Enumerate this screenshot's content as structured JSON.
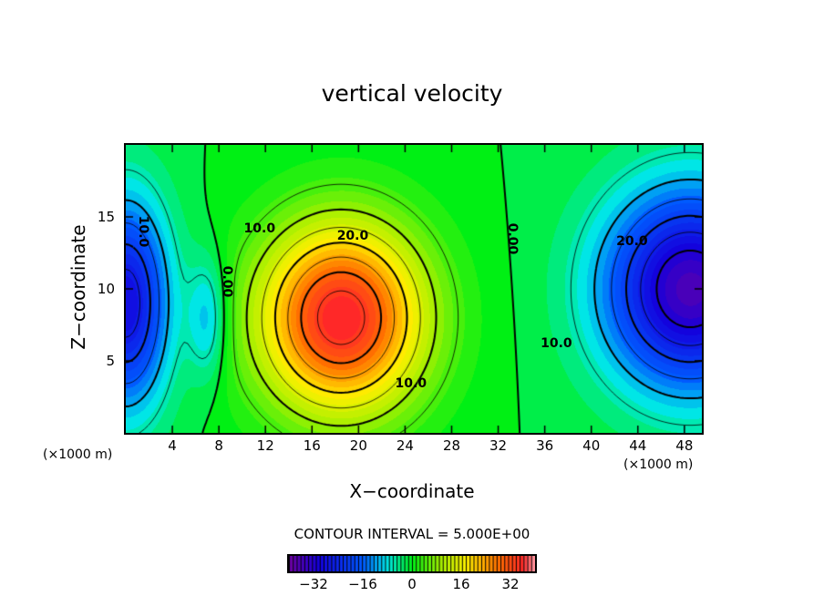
{
  "chart_data": {
    "type": "heatmap",
    "subtype": "filled-contour",
    "title": "vertical velocity",
    "xlabel": "X−coordinate",
    "ylabel": "Z−coordinate",
    "x_unit_left": "(×1000 m)",
    "x_unit_right": "(×1000 m)",
    "xlim": [
      0,
      49.5
    ],
    "ylim": [
      0,
      20
    ],
    "xticks": [
      4,
      8,
      12,
      16,
      20,
      24,
      28,
      32,
      36,
      40,
      44,
      48
    ],
    "xtick_labels": [
      "4",
      "8",
      "12",
      "16",
      "20",
      "24",
      "28",
      "32",
      "36",
      "40",
      "44",
      "48"
    ],
    "yticks": [
      5,
      10,
      15
    ],
    "ytick_labels": [
      "5",
      "10",
      "15"
    ],
    "contour_interval_label": "CONTOUR INTERVAL = 5.000E+00",
    "contour_interval": 5,
    "negative_contours": "dashed",
    "colorbar": {
      "range": [
        -40,
        40
      ],
      "ticks": [
        -32,
        -16,
        0,
        16,
        32
      ],
      "tick_labels": [
        "−32",
        "−16",
        "0",
        "16",
        "32"
      ]
    },
    "field_features": [
      {
        "kind": "updraft max",
        "x": 18.5,
        "z": 8,
        "value": 38
      },
      {
        "kind": "downdraft min",
        "x": 48.5,
        "z": 10,
        "value": -35
      },
      {
        "kind": "downdraft min",
        "x": 0,
        "z": 9,
        "value": -28
      },
      {
        "kind": "weak downdraft",
        "x": 7,
        "z": 8,
        "value": -10
      }
    ],
    "contour_labels": [
      {
        "text": "10.0",
        "x": 1.5,
        "z": 14
      },
      {
        "text": "0.00",
        "x": 8.7,
        "z": 10.5
      },
      {
        "text": "10.0",
        "x": 11.5,
        "z": 14.2
      },
      {
        "text": "20.0",
        "x": 19.5,
        "z": 13.7
      },
      {
        "text": "10.0",
        "x": 24.5,
        "z": 3.4
      },
      {
        "text": "0.00",
        "x": 33.2,
        "z": 13.5
      },
      {
        "text": "10.0",
        "x": 37,
        "z": 6.2
      },
      {
        "text": "20.0",
        "x": 43.5,
        "z": 13.3
      }
    ]
  }
}
